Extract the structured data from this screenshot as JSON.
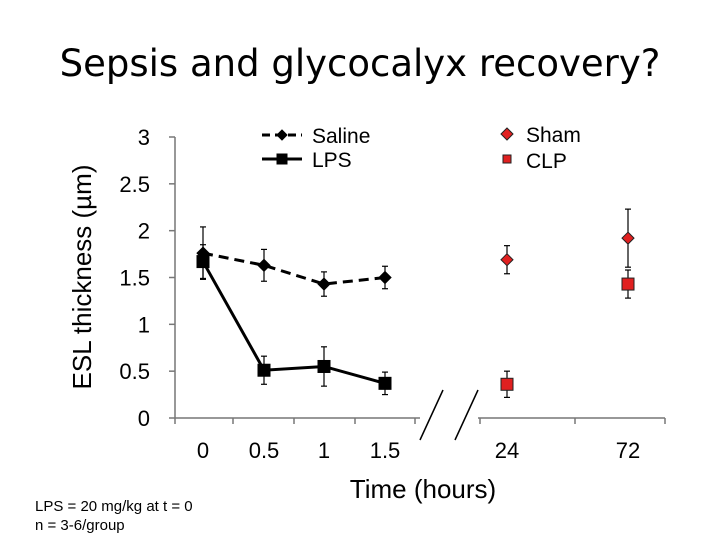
{
  "title": "Sepsis and glycocalyx recovery?",
  "notes": [
    "LPS = 20 mg/kg at t = 0",
    "n = 3-6/group"
  ],
  "chart_data": {
    "type": "line",
    "xlabel": "Time (hours)",
    "ylabel": "ESL thickness (µm)",
    "ylim": [
      0,
      3
    ],
    "yticks": [
      "0",
      "0.5",
      "1",
      "1.5",
      "2",
      "2.5",
      "3"
    ],
    "categories": [
      "0",
      "0.5",
      "1",
      "1.5",
      "24",
      "72"
    ],
    "axis_break": "between 1.5 and 24",
    "series": [
      {
        "name": "Saline",
        "style": "dashed-line",
        "marker": "diamond",
        "color": "#000000",
        "points": [
          {
            "x": "0",
            "y": 1.76,
            "err": 0.28
          },
          {
            "x": "0.5",
            "y": 1.63,
            "err": 0.17
          },
          {
            "x": "1",
            "y": 1.43,
            "err": 0.13
          },
          {
            "x": "1.5",
            "y": 1.5,
            "err": 0.12
          }
        ]
      },
      {
        "name": "LPS",
        "style": "solid-line",
        "marker": "square",
        "color": "#000000",
        "points": [
          {
            "x": "0",
            "y": 1.67,
            "err": 0.18
          },
          {
            "x": "0.5",
            "y": 0.51,
            "err": 0.15
          },
          {
            "x": "1",
            "y": 0.55,
            "err": 0.21
          },
          {
            "x": "1.5",
            "y": 0.37,
            "err": 0.12
          }
        ]
      },
      {
        "name": "Sham",
        "style": "markers-only",
        "marker": "diamond",
        "color": "#e02020",
        "points": [
          {
            "x": "24",
            "y": 1.69,
            "err": 0.15
          },
          {
            "x": "72",
            "y": 1.92,
            "err": 0.31
          }
        ]
      },
      {
        "name": "CLP",
        "style": "markers-only",
        "marker": "square",
        "color": "#e02020",
        "points": [
          {
            "x": "24",
            "y": 0.36,
            "err": 0.14
          },
          {
            "x": "72",
            "y": 1.43,
            "err": 0.15
          }
        ]
      }
    ]
  }
}
